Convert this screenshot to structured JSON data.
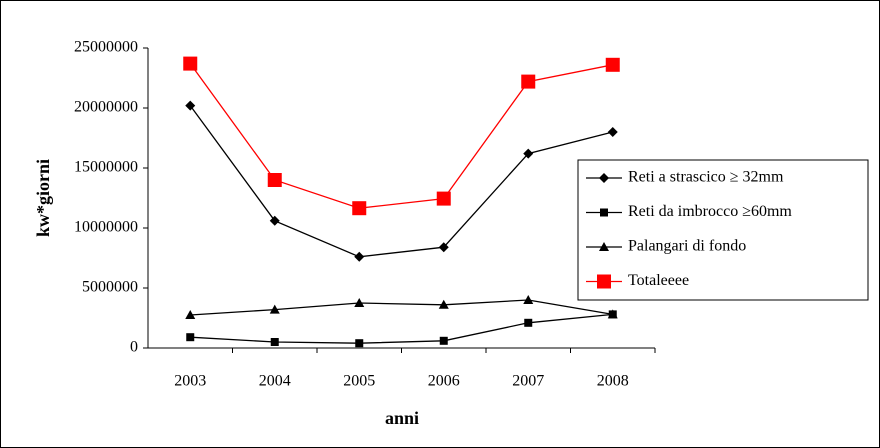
{
  "chart_data": {
    "type": "line",
    "x_label": "anni",
    "y_label": "kw*giorni",
    "categories": [
      "2003",
      "2004",
      "2005",
      "2006",
      "2007",
      "2008"
    ],
    "series": [
      {
        "name": "Reti a strascico ≥ 32mm",
        "color": "#000000",
        "marker": "diamond",
        "values": [
          20200000,
          10600000,
          7600000,
          8400000,
          16200000,
          18000000
        ]
      },
      {
        "name": "Reti da imbrocco  ≥60mm",
        "color": "#000000",
        "marker": "square",
        "values": [
          900000,
          500000,
          400000,
          600000,
          2100000,
          2800000
        ]
      },
      {
        "name": "Palangari di fondo",
        "color": "#000000",
        "marker": "triangle",
        "values": [
          2750000,
          3200000,
          3750000,
          3600000,
          4000000,
          2800000
        ]
      },
      {
        "name": "Totaleeee",
        "color": "#ff0000",
        "marker": "big-square",
        "values": [
          23700000,
          14000000,
          11650000,
          12450000,
          22200000,
          23600000
        ]
      }
    ],
    "ylim": [
      0,
      25000000
    ],
    "yticks": [
      0,
      5000000,
      10000000,
      15000000,
      20000000,
      25000000
    ],
    "grid": false,
    "legend": "right"
  }
}
